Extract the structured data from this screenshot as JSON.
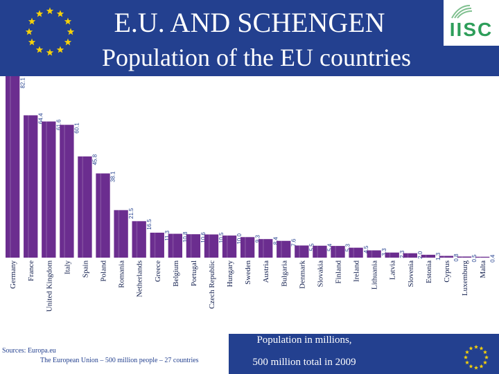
{
  "header": {
    "title": "E.U. AND SCHENGEN",
    "subtitle": "Population of the EU countries",
    "logo_text": "IISC"
  },
  "colors": {
    "header_bg": "#23408f",
    "bar": "#6b2d8f",
    "bar_highlight": "#ffffff",
    "star": "#f5d10a"
  },
  "footer": {
    "caption": "Population in millions,",
    "total": "500 million total in 2009",
    "sources": "Sources: Europa.eu",
    "sources_sub": "The European Union – 500 million people – 27 countries"
  },
  "chart_data": {
    "type": "bar",
    "title": "Population of the EU countries",
    "ylabel": "",
    "xlabel": "",
    "ylim": [
      0,
      82.1
    ],
    "grid": false,
    "legend": "none",
    "categories": [
      "Germany",
      "France",
      "United Kingdom",
      "Italy",
      "Spain",
      "Poland",
      "Romania",
      "Netherlands",
      "Greece",
      "Belgium",
      "Portugal",
      "Czech Republic",
      "Hungary",
      "Sweden",
      "Austria",
      "Bulgaria",
      "Denmark",
      "Slovakia",
      "Finland",
      "Ireland",
      "Lithuania",
      "Latvia",
      "Slovenia",
      "Estonia",
      "Cyprus",
      "Luxemburg",
      "Malta"
    ],
    "values": [
      82.1,
      64.4,
      61.6,
      60.1,
      45.8,
      38.1,
      21.5,
      16.5,
      11.3,
      10.8,
      10.6,
      10.5,
      10.0,
      9.3,
      8.4,
      7.6,
      5.5,
      5.4,
      5.3,
      4.5,
      3.3,
      2.3,
      2.0,
      1.3,
      0.8,
      0.5,
      0.4
    ],
    "labels": [
      "82.1",
      "64.4",
      "61.6",
      "60.1",
      "45.8",
      "38.1",
      "21.5",
      "16.5",
      "11.3",
      "10.8",
      "10.6",
      "10.5",
      "10.0",
      "9.3",
      "8.4",
      "7.6",
      "5.5",
      "5.4",
      "5.3",
      "4.5",
      "3.3",
      "2.3",
      "2.0",
      "1.3",
      "0.8",
      "0.5",
      "0.4"
    ]
  }
}
